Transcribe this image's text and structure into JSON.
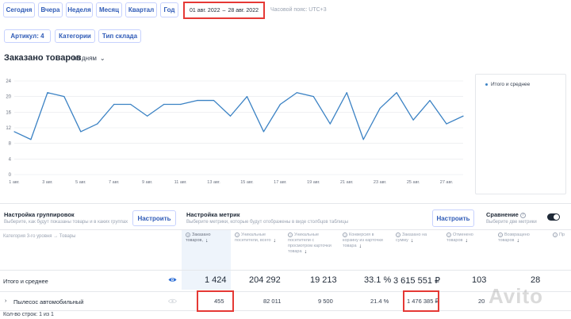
{
  "periods": [
    "Сегодня",
    "Вчера",
    "Неделя",
    "Месяц",
    "Квартал",
    "Год"
  ],
  "date_range": {
    "from": "01 авг. 2022",
    "dash": "–",
    "to": "28 авг. 2022"
  },
  "timezone": "Часовой пояс: UTC+3",
  "filters": [
    "Артикул: 4",
    "Категории",
    "Тип склада"
  ],
  "section_title": "Заказано товаров",
  "granularity": "по дням",
  "legend_label": "Итого и среднее",
  "accent_color": "#3b82c4",
  "chart_data": {
    "type": "line",
    "x": [
      "1 авг.",
      "2 авг.",
      "3 авг.",
      "4 авг.",
      "5 авг.",
      "6 авг.",
      "7 авг.",
      "8 авг.",
      "9 авг.",
      "10 авг.",
      "11 авг.",
      "12 авг.",
      "13 авг.",
      "14 авг.",
      "15 авг.",
      "16 авг.",
      "17 авг.",
      "18 авг.",
      "19 авг.",
      "20 авг.",
      "21 авг.",
      "22 авг.",
      "23 авг.",
      "24 авг.",
      "25 авг.",
      "26 авг.",
      "27 авг.",
      "28 авг."
    ],
    "x_ticks": [
      "1 авг.",
      "3 авг.",
      "5 авг.",
      "7 авг.",
      "9 авг.",
      "11 авг.",
      "13 авг.",
      "15 авг.",
      "17 авг.",
      "19 авг.",
      "21 авг.",
      "23 авг.",
      "25 авг.",
      "27 авг."
    ],
    "series": [
      {
        "values": [
          11,
          9,
          21,
          20,
          11,
          13,
          18,
          18,
          15,
          18,
          18,
          19,
          19,
          15,
          20,
          11,
          18,
          21,
          20,
          13,
          21,
          9,
          17,
          21,
          14,
          19,
          13,
          15
        ]
      }
    ],
    "y_ticks": [
      0,
      4,
      8,
      12,
      16,
      20,
      24
    ],
    "ylim": [
      0,
      24
    ],
    "grid": true
  },
  "grouping": {
    "title": "Настройка группировок",
    "subtitle": "Выберите, как будут показаны товары и в каких группах",
    "button": "Настроить"
  },
  "metrics": {
    "title": "Настройка метрик",
    "subtitle": "Выберите метрики, которые будут отображены в виде столбцов таблицы",
    "button": "Настроить"
  },
  "comparison": {
    "title": "Сравнение",
    "subtitle": "Выберите две метрики"
  },
  "table": {
    "category_header": "Категория 3-го уровня → Товары",
    "columns": [
      "Заказано товаров,",
      "Уникальные посетители, всего",
      "Уникальные посетители с просмотром карточки товара",
      "Конверсия в корзину из карточки товара",
      "Заказано на сумму",
      "Отменено товаров",
      "Возвращено товаров",
      "Пр"
    ],
    "total_label": "Итого и среднее",
    "total_values": [
      "1 424",
      "204 292",
      "19 213",
      "33.1 %",
      "3 615 551 ₽",
      "103",
      "28"
    ],
    "rows": [
      {
        "label": "Пылесос автомобильный",
        "values": [
          "455",
          "82 011",
          "9 500",
          "21.4 %",
          "1 476 385 ₽",
          "20",
          ""
        ]
      }
    ],
    "footer": "Кол-во строк: 1 из 1"
  },
  "watermark": "Avito"
}
